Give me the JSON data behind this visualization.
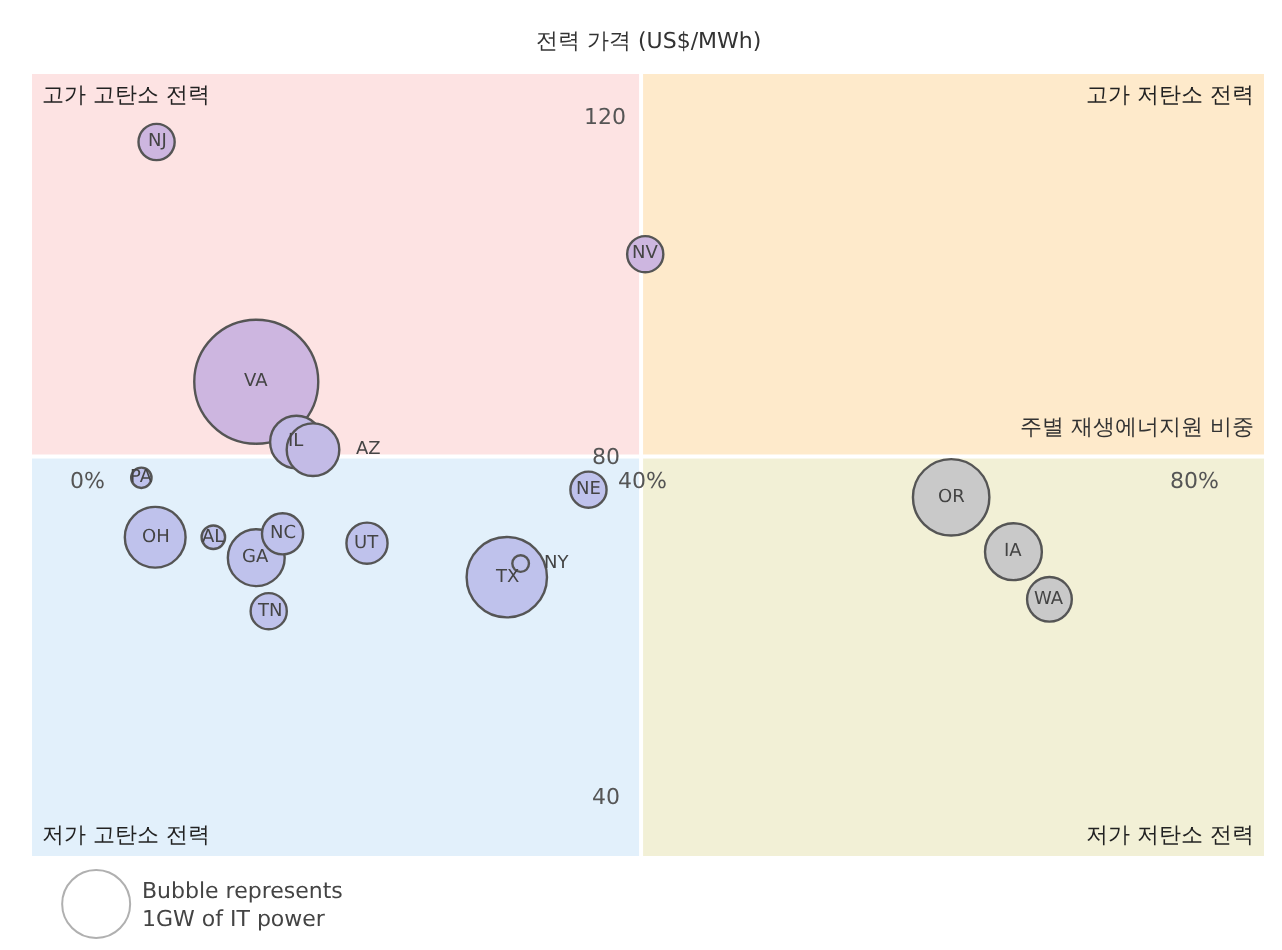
{
  "chart_data": {
    "type": "bubble",
    "ylabel": "전력 가격 (US$/MWh)",
    "xlabel": "주별 재생에너지원 비중",
    "x": [
      5.0,
      40.3,
      12.2,
      15.1,
      16.3,
      3.9,
      36.2,
      4.9,
      9.1,
      12.2,
      14.1,
      20.2,
      31.3,
      30.3,
      13.1,
      62.4,
      66.9,
      69.5
    ],
    "values": [
      117,
      103.8,
      88.8,
      81.7,
      80.8,
      77.5,
      76.1,
      70.5,
      70.5,
      68.1,
      70.9,
      69.8,
      67.4,
      65.8,
      61.8,
      75.2,
      68.8,
      63.2
    ],
    "sizes": [
      0.085,
      0.085,
      1,
      0.18,
      0.18,
      0.027,
      0.085,
      0.24,
      0.036,
      0.21,
      0.11,
      0.11,
      0.018,
      0.42,
      0.085,
      0.38,
      0.21,
      0.13
    ],
    "colors": [
      "#cdb6e0",
      "#cdb6e0",
      "#cdb6e0",
      "#c3bbe6",
      "#c3bbe6",
      "#bfc2ec",
      "#bfc2ec",
      "#bfc2ec",
      "#bfc2ec",
      "#bfc2ec",
      "#bfc2ec",
      "#bfc2ec",
      "#bfc2ec",
      "#bfc2ec",
      "#bfc2ec",
      "#c9c9c9",
      "#c9c9c9",
      "#c9c9c9"
    ],
    "xlim": [
      -4,
      85
    ],
    "ylim": [
      33,
      125
    ],
    "xticks": [
      {
        "value": 0,
        "label": "0%"
      },
      {
        "value": 40,
        "label": "40%"
      },
      {
        "value": 80,
        "label": "80%"
      }
    ],
    "yticks": [
      40,
      80,
      120
    ],
    "bands": [
      {
        "axis": "y",
        "from": 80,
        "to": 125,
        "color": "#fde3e3"
      },
      {
        "axis": "y",
        "from": 33,
        "to": 80,
        "color": "#e2f0fb"
      },
      {
        "axis": "x",
        "from": 40,
        "to": 85,
        "color": "#fff0b8"
      }
    ],
    "annotations": [
      "고가 고탄소 전력",
      "고가 저탄소 전력",
      "저가 고탄소 전력",
      "저가 저탄소 전력",
      "Bubble represents\n1GW of IT power",
      {
        "text": "NJ",
        "x": 5.0,
        "y": 117
      },
      {
        "text": "NV",
        "x": 40.3,
        "y": 103.8
      },
      {
        "text": "VA",
        "x": 12.2,
        "y": 88.8
      },
      {
        "text": "IL",
        "x": 15.1,
        "y": 81.7
      },
      {
        "text": "AZ",
        "x": 16.3,
        "y": 80.8
      },
      {
        "text": "PA",
        "x": 3.9,
        "y": 77.5
      },
      {
        "text": "NE",
        "x": 36.2,
        "y": 76.1
      },
      {
        "text": "OH",
        "x": 4.9,
        "y": 70.5
      },
      {
        "text": "AL",
        "x": 9.1,
        "y": 70.5
      },
      {
        "text": "GA",
        "x": 12.2,
        "y": 68.1
      },
      {
        "text": "NC",
        "x": 14.1,
        "y": 70.9
      },
      {
        "text": "UT",
        "x": 20.2,
        "y": 69.8
      },
      {
        "text": "NY",
        "x": 31.3,
        "y": 67.4
      },
      {
        "text": "TX",
        "x": 30.3,
        "y": 65.8
      },
      {
        "text": "TN",
        "x": 13.1,
        "y": 61.8
      },
      {
        "text": "OR",
        "x": 62.4,
        "y": 75.2
      },
      {
        "text": "IA",
        "x": 66.9,
        "y": 68.8
      },
      {
        "text": "WA",
        "x": 69.5,
        "y": 63.2
      }
    ],
    "grid": false
  }
}
